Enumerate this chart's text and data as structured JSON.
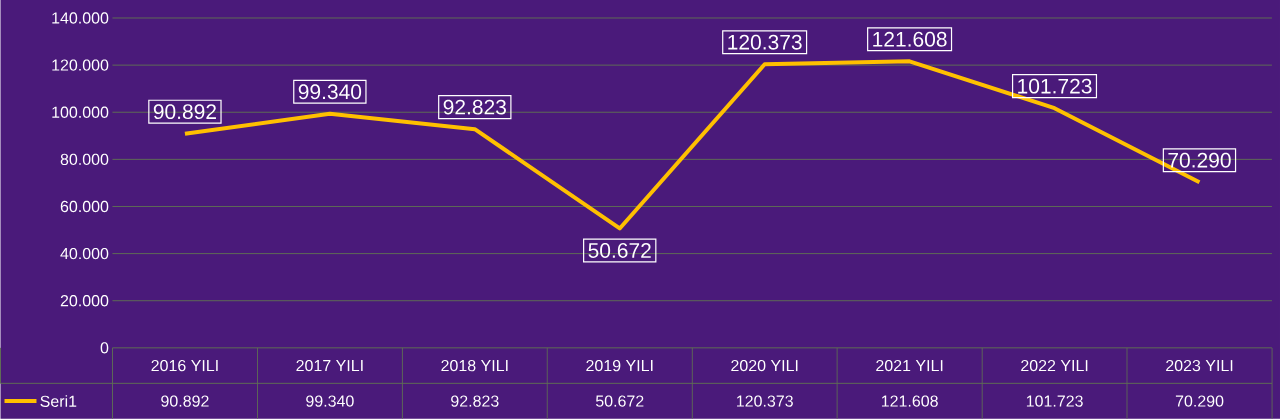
{
  "chart_data": {
    "type": "line",
    "categories": [
      "2016 YILI",
      "2017 YILI",
      "2018 YILI",
      "2019 YILI",
      "2020 YILI",
      "2021 YILI",
      "2022 YILI",
      "2023 YILI"
    ],
    "series": [
      {
        "name": "Seri1",
        "color": "#ffc000",
        "values": [
          90892,
          99340,
          92823,
          50672,
          120373,
          121608,
          101723,
          70290
        ],
        "value_labels": [
          "90.892",
          "99.340",
          "92.823",
          "50.672",
          "120.373",
          "121.608",
          "101.723",
          "70.290"
        ]
      }
    ],
    "ylim": [
      0,
      140000
    ],
    "yticks": [
      0,
      {
        "value": 20000,
        "label": "20.000"
      },
      {
        "value": 40000,
        "label": "40.000"
      },
      {
        "value": 60000,
        "label": "60.000"
      },
      {
        "value": 80000,
        "label": "80.000"
      },
      {
        "value": 100000,
        "label": "100.000"
      },
      {
        "value": 120000,
        "label": "120.000"
      },
      {
        "value": 140000,
        "label": "140.000"
      }
    ],
    "grid": true,
    "legend": "bottom"
  }
}
